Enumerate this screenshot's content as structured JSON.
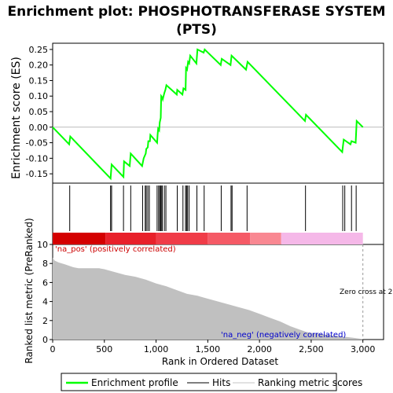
{
  "chart_data": {
    "type": "line",
    "title_line1": "Enrichment plot: PHOSPHOTRANSFERASE SYSTEM",
    "title_line2": "(PTS)",
    "es_panel": {
      "ylabel": "Enrichment score (ES)",
      "ylim": [
        -0.18,
        0.27
      ],
      "yticks": [
        "0.25",
        "0.20",
        "0.15",
        "0.10",
        "0.05",
        "0.00",
        "-0.05",
        "-0.10",
        "-0.15"
      ],
      "ytick_values": [
        0.25,
        0.2,
        0.15,
        0.1,
        0.05,
        0.0,
        -0.05,
        -0.1,
        -0.15
      ],
      "line_color": "#00ff00",
      "points": [
        [
          0,
          0.0
        ],
        [
          160,
          -0.055
        ],
        [
          170,
          -0.03
        ],
        [
          560,
          -0.165
        ],
        [
          570,
          -0.12
        ],
        [
          685,
          -0.16
        ],
        [
          690,
          -0.11
        ],
        [
          745,
          -0.125
        ],
        [
          755,
          -0.085
        ],
        [
          865,
          -0.125
        ],
        [
          880,
          -0.1
        ],
        [
          900,
          -0.085
        ],
        [
          905,
          -0.07
        ],
        [
          920,
          -0.065
        ],
        [
          925,
          -0.045
        ],
        [
          940,
          -0.045
        ],
        [
          945,
          -0.025
        ],
        [
          1010,
          -0.05
        ],
        [
          1015,
          -0.025
        ],
        [
          1020,
          -0.005
        ],
        [
          1030,
          -0.01
        ],
        [
          1035,
          0.015
        ],
        [
          1045,
          0.03
        ],
        [
          1050,
          0.1
        ],
        [
          1060,
          0.095
        ],
        [
          1065,
          0.09
        ],
        [
          1080,
          0.11
        ],
        [
          1090,
          0.12
        ],
        [
          1100,
          0.135
        ],
        [
          1200,
          0.105
        ],
        [
          1205,
          0.12
        ],
        [
          1255,
          0.105
        ],
        [
          1265,
          0.125
        ],
        [
          1285,
          0.12
        ],
        [
          1290,
          0.19
        ],
        [
          1300,
          0.185
        ],
        [
          1310,
          0.21
        ],
        [
          1320,
          0.205
        ],
        [
          1330,
          0.23
        ],
        [
          1390,
          0.205
        ],
        [
          1400,
          0.25
        ],
        [
          1460,
          0.24
        ],
        [
          1470,
          0.25
        ],
        [
          1625,
          0.2
        ],
        [
          1635,
          0.22
        ],
        [
          1720,
          0.2
        ],
        [
          1730,
          0.23
        ],
        [
          1870,
          0.185
        ],
        [
          1885,
          0.21
        ],
        [
          2440,
          0.02
        ],
        [
          2450,
          0.04
        ],
        [
          2800,
          -0.08
        ],
        [
          2815,
          -0.04
        ],
        [
          2880,
          -0.055
        ],
        [
          2890,
          -0.045
        ],
        [
          2930,
          -0.05
        ],
        [
          2940,
          0.02
        ],
        [
          3000,
          0.0
        ]
      ]
    },
    "hits": [
      165,
      560,
      570,
      685,
      755,
      870,
      895,
      905,
      920,
      935,
      1010,
      1025,
      1035,
      1045,
      1050,
      1060,
      1080,
      1095,
      1205,
      1260,
      1285,
      1295,
      1305,
      1320,
      1395,
      1465,
      1630,
      1725,
      1735,
      1880,
      2445,
      2805,
      2825,
      2890,
      2935
    ],
    "color_bar": [
      {
        "from": 0,
        "to": 510,
        "color": "#d40000"
      },
      {
        "from": 510,
        "to": 1000,
        "color": "#e8202a"
      },
      {
        "from": 1000,
        "to": 1500,
        "color": "#f03c48"
      },
      {
        "from": 1500,
        "to": 1910,
        "color": "#f55a66"
      },
      {
        "from": 1910,
        "to": 2210,
        "color": "#f98892"
      },
      {
        "from": 2210,
        "to": 3000,
        "color": "#f5b8e8"
      }
    ],
    "metric_panel": {
      "ylabel": "Ranked list metric (PreRanked)",
      "ylim": [
        0,
        10
      ],
      "yticks": [
        "10",
        "8",
        "6",
        "4",
        "2",
        "0"
      ],
      "ytick_values": [
        10,
        8,
        6,
        4,
        2,
        0
      ],
      "fill_color": "#c0c0c0",
      "curve": [
        [
          0,
          8.6
        ],
        [
          20,
          8.3
        ],
        [
          60,
          8.1
        ],
        [
          120,
          7.9
        ],
        [
          200,
          7.6
        ],
        [
          250,
          7.5
        ],
        [
          450,
          7.5
        ],
        [
          500,
          7.4
        ],
        [
          600,
          7.1
        ],
        [
          700,
          6.8
        ],
        [
          800,
          6.6
        ],
        [
          900,
          6.3
        ],
        [
          1000,
          5.9
        ],
        [
          1100,
          5.6
        ],
        [
          1200,
          5.2
        ],
        [
          1300,
          4.8
        ],
        [
          1400,
          4.6
        ],
        [
          1500,
          4.3
        ],
        [
          1600,
          4.0
        ],
        [
          1700,
          3.7
        ],
        [
          1800,
          3.4
        ],
        [
          1900,
          3.1
        ],
        [
          2000,
          2.7
        ],
        [
          2100,
          2.3
        ],
        [
          2200,
          1.9
        ],
        [
          2300,
          1.4
        ],
        [
          2400,
          1.0
        ],
        [
          2450,
          0.8
        ],
        [
          2500,
          0.7
        ],
        [
          2700,
          0.45
        ],
        [
          2900,
          0.2
        ],
        [
          3000,
          0.05
        ]
      ],
      "pos_label": "'na_pos' (positively correlated)",
      "neg_label": "'na_neg' (negatively correlated)",
      "zero_cross_label": "Zero cross at 2",
      "zero_cross_x": 3000
    },
    "xlabel": "Rank in Ordered Dataset",
    "xlim": [
      0,
      3200
    ],
    "xticks": [
      "0",
      "500",
      "1,000",
      "1,500",
      "2,000",
      "2,500",
      "3,000"
    ],
    "xtick_values": [
      0,
      500,
      1000,
      1500,
      2000,
      2500,
      3000
    ],
    "legend": [
      {
        "label": "Enrichment profile",
        "color": "#00ff00"
      },
      {
        "label": "Hits",
        "color": "#555555"
      },
      {
        "label": "Ranking metric scores",
        "color": "#d8d8d8"
      }
    ]
  }
}
